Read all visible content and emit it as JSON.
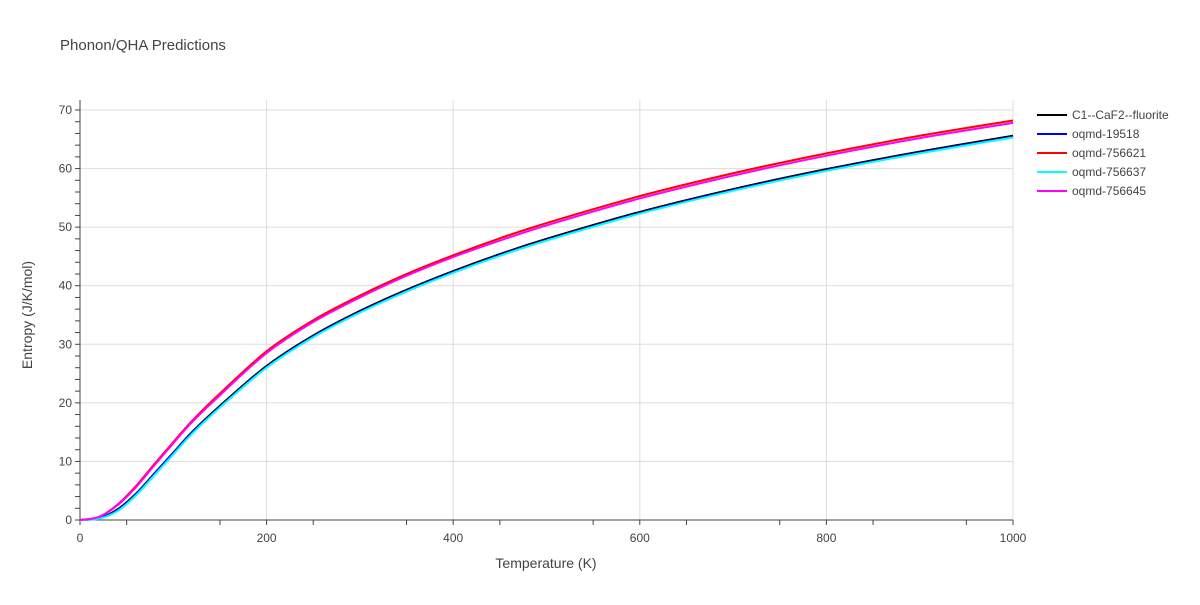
{
  "chart_data": {
    "type": "line",
    "title": "Phonon/QHA Predictions",
    "xlabel": "Temperature (K)",
    "ylabel": "Entropy (J/K/mol)",
    "xlim": [
      0,
      1000
    ],
    "ylim": [
      0,
      72
    ],
    "xticks": [
      0,
      200,
      400,
      600,
      800,
      1000
    ],
    "yticks": [
      0,
      10,
      20,
      30,
      40,
      50,
      60,
      70
    ],
    "grid": true,
    "legend_position": "top-right",
    "x": [
      0,
      20,
      40,
      60,
      80,
      100,
      120,
      150,
      200,
      250,
      300,
      350,
      400,
      450,
      500,
      600,
      700,
      800,
      900,
      1000
    ],
    "series": [
      {
        "name": "C1--CaF2--fluorite",
        "color": "#000000",
        "values": [
          0,
          0.3,
          1.8,
          4.5,
          8.0,
          11.5,
          15.0,
          19.5,
          26.3,
          31.5,
          35.7,
          39.3,
          42.5,
          45.4,
          48.0,
          52.6,
          56.5,
          59.9,
          62.9,
          65.6
        ]
      },
      {
        "name": "oqmd-19518",
        "color": "#0000ff",
        "values": [
          0,
          0.3,
          1.7,
          4.4,
          7.9,
          11.4,
          14.9,
          19.3,
          26.1,
          31.3,
          35.5,
          39.1,
          42.3,
          45.2,
          47.8,
          52.4,
          56.3,
          59.7,
          62.7,
          65.4
        ]
      },
      {
        "name": "oqmd-756621",
        "color": "#ff0000",
        "values": [
          0,
          0.5,
          2.6,
          5.8,
          9.6,
          13.3,
          16.9,
          21.6,
          28.8,
          34.1,
          38.3,
          42.0,
          45.2,
          48.1,
          50.7,
          55.3,
          59.2,
          62.6,
          65.6,
          68.2
        ]
      },
      {
        "name": "oqmd-756637",
        "color": "#00ffff",
        "values": [
          0,
          0.2,
          1.5,
          4.2,
          7.7,
          11.2,
          14.7,
          19.2,
          26.0,
          31.2,
          35.4,
          39.0,
          42.2,
          45.1,
          47.7,
          52.3,
          56.2,
          59.6,
          62.6,
          65.3
        ]
      },
      {
        "name": "oqmd-756645",
        "color": "#ff00ff",
        "values": [
          0,
          0.5,
          2.5,
          5.6,
          9.4,
          13.1,
          16.7,
          21.3,
          28.5,
          33.8,
          38.0,
          41.7,
          44.9,
          47.7,
          50.3,
          54.9,
          58.8,
          62.2,
          65.2,
          67.8
        ]
      }
    ]
  }
}
